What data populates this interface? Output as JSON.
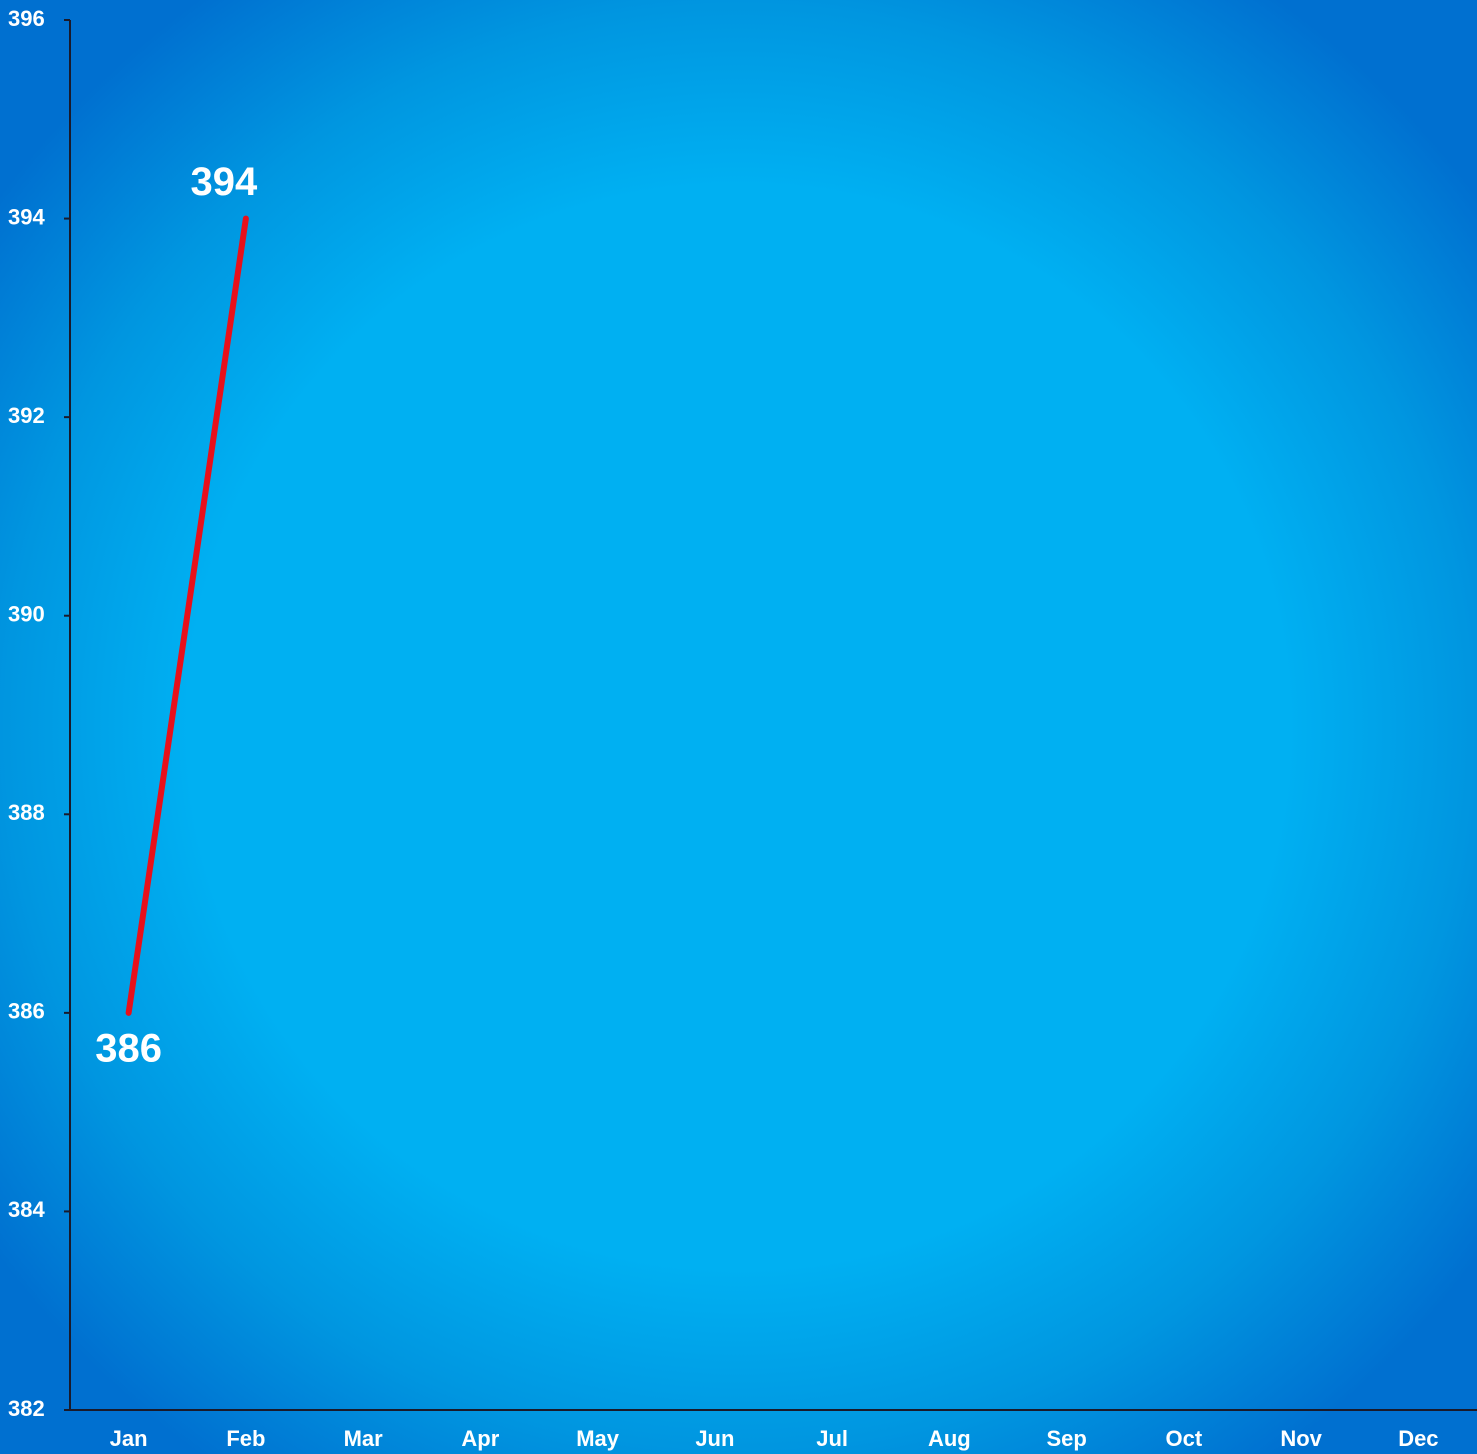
{
  "chart_data": {
    "type": "line",
    "categories": [
      "Jan",
      "Feb",
      "Mar",
      "Apr",
      "May",
      "Jun",
      "Jul",
      "Aug",
      "Sep",
      "Oct",
      "Nov",
      "Dec"
    ],
    "series": [
      {
        "color": "#e8101a",
        "values": [
          386,
          394,
          null,
          null,
          null,
          null,
          null,
          null,
          null,
          null,
          null,
          null
        ]
      }
    ],
    "ylim": [
      382,
      396
    ],
    "yticks": [
      382,
      384,
      386,
      388,
      390,
      392,
      394,
      396
    ],
    "grid": false
  }
}
